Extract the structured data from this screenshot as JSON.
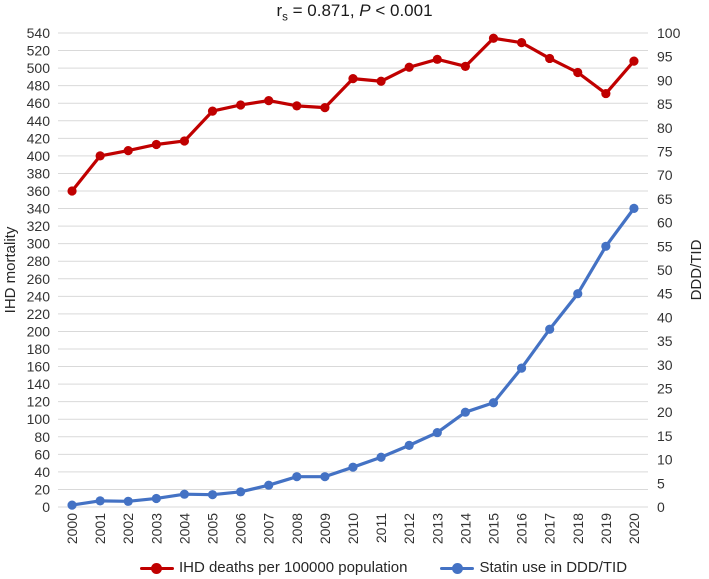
{
  "title": {
    "prefix": "r",
    "sub": "s",
    "mid": " = 0.871, ",
    "italic": "P",
    "suffix": " < 0.001"
  },
  "chart_data": {
    "type": "line",
    "title_text": "rs = 0.871, P < 0.001",
    "x": [
      "2000",
      "2001",
      "2002",
      "2003",
      "2004",
      "2005",
      "2006",
      "2007",
      "2008",
      "2009",
      "2010",
      "2011",
      "2012",
      "2013",
      "2014",
      "2015",
      "2016",
      "2017",
      "2018",
      "2019",
      "2020"
    ],
    "series": [
      {
        "name": "IHD deaths per 100000 population",
        "yaxis": "left",
        "color": "#C00000",
        "values": [
          360,
          400,
          406,
          413,
          417,
          451,
          458,
          463,
          457,
          455,
          488,
          485,
          501,
          510,
          502,
          534,
          529,
          511,
          495,
          471,
          508
        ]
      },
      {
        "name": "Statin use in DDD/TID",
        "yaxis": "right",
        "color": "#4472C4",
        "values": [
          0.4,
          1.3,
          1.2,
          1.8,
          2.7,
          2.6,
          3.2,
          4.6,
          6.4,
          6.4,
          8.4,
          10.5,
          13,
          15.7,
          20,
          22,
          29.3,
          37.5,
          45,
          55,
          63
        ]
      }
    ],
    "left_axis": {
      "label": "IHD mortality",
      "min": 0,
      "max": 540,
      "step": 20
    },
    "right_axis": {
      "label": "DDD/TID",
      "min": 0,
      "max": 100,
      "step": 5
    },
    "grid": true,
    "grid_color": "#D9D9D9",
    "legend_position": "bottom"
  }
}
